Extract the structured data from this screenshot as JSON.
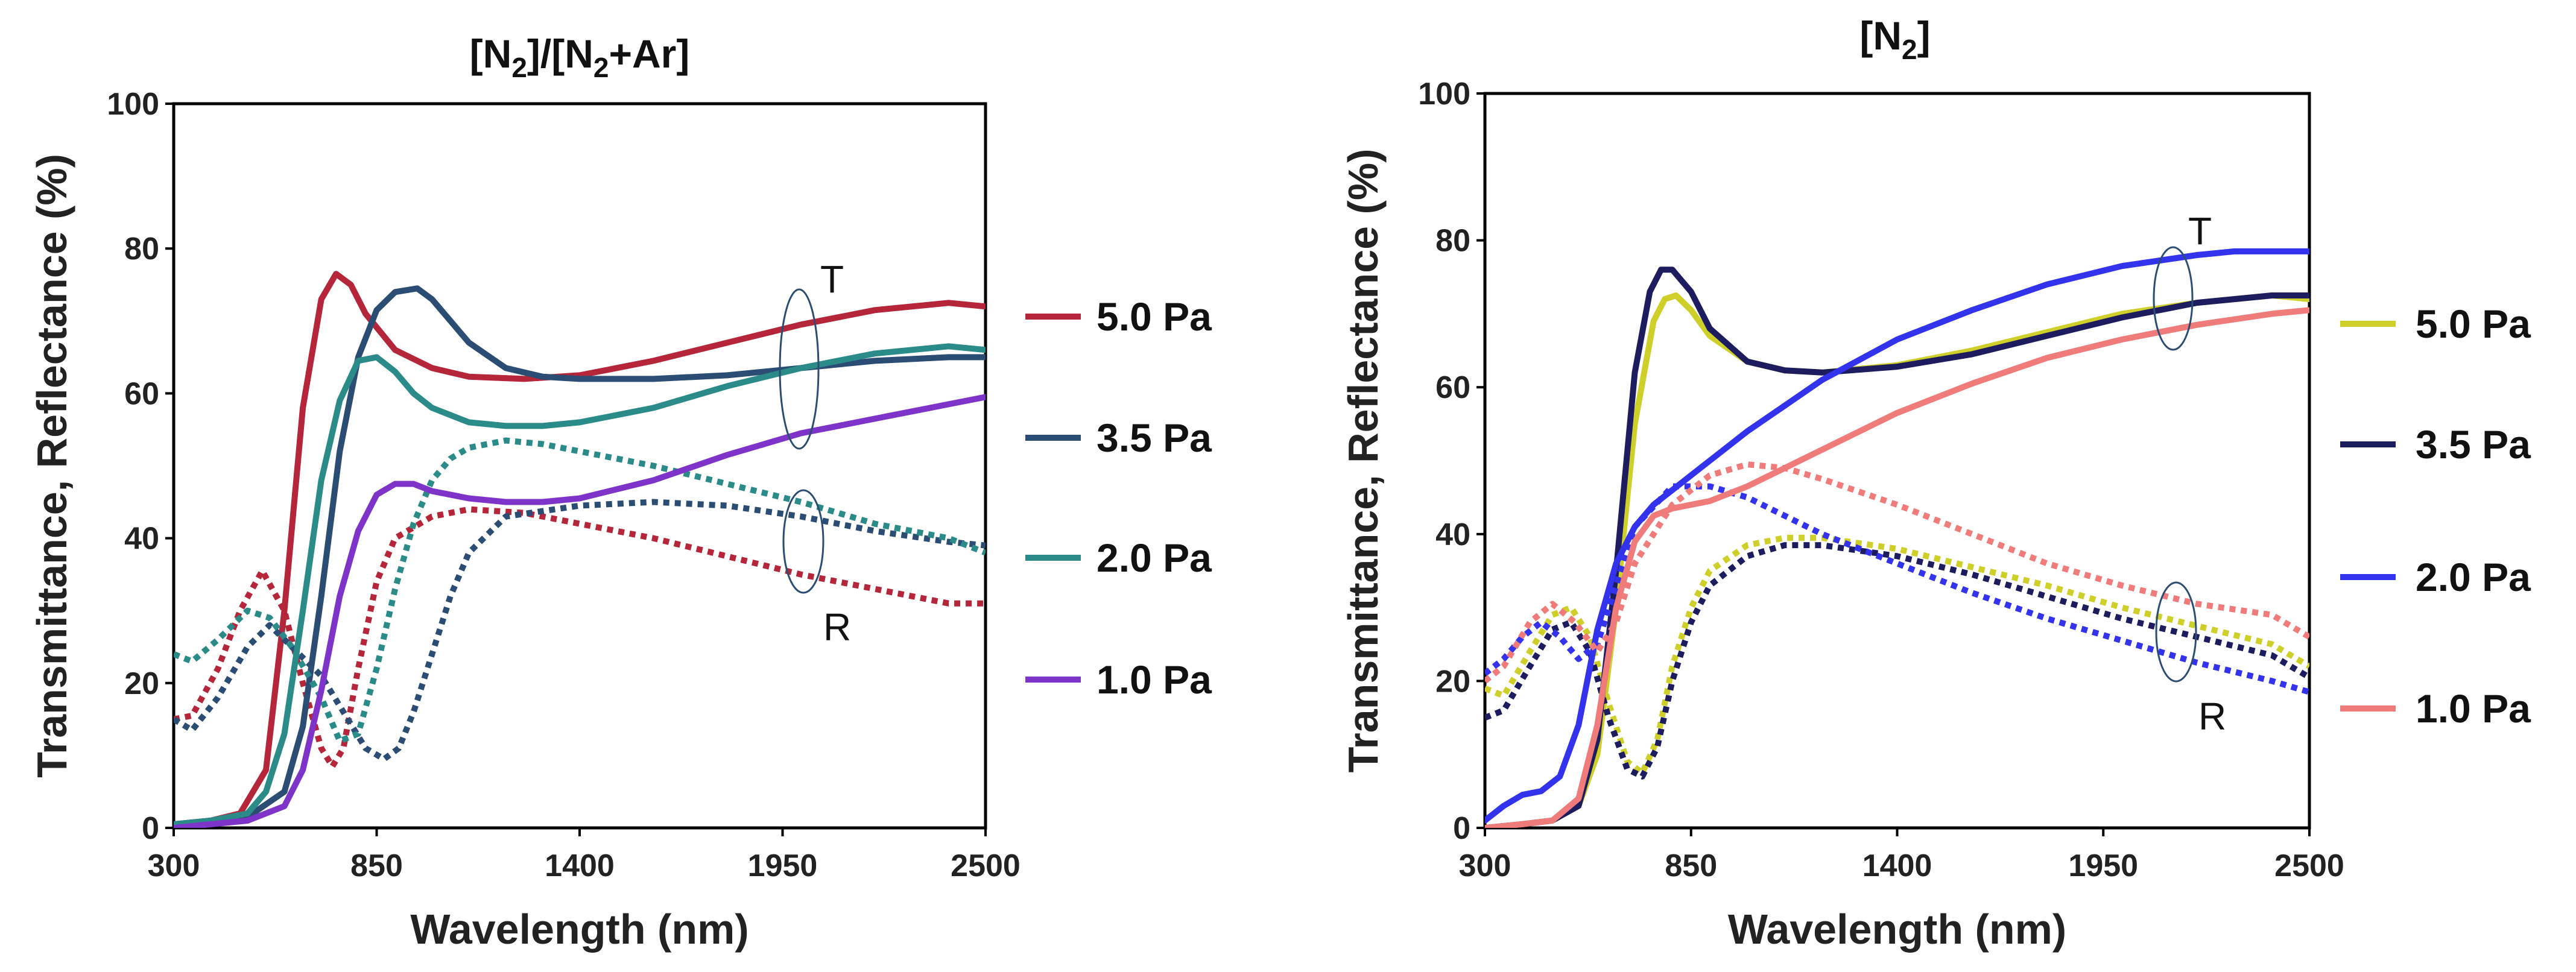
{
  "chart_data": [
    {
      "type": "line",
      "title": "[N2]/[N2+Ar]",
      "title_main": "[N",
      "title_sub1": "2",
      "title_mid": "]/[N",
      "title_sub2": "2",
      "title_end": "+Ar]",
      "xlabel": "Wavelength (nm)",
      "ylabel": "Transmittance,  Reflectance (%)",
      "xlim": [
        300,
        2500
      ],
      "ylim": [
        0,
        100
      ],
      "xticks": [
        300,
        850,
        1400,
        1950,
        2500
      ],
      "yticks": [
        0,
        20,
        40,
        60,
        80,
        100
      ],
      "annotation_T": "T",
      "annotation_R": "R",
      "series": [
        {
          "name": "5.0 Pa",
          "color": "#b5263b",
          "T": {
            "x": [
              300,
              400,
              480,
              550,
              600,
              650,
              700,
              740,
              780,
              820,
              900,
              1000,
              1100,
              1250,
              1400,
              1600,
              1800,
              2000,
              2200,
              2400,
              2500
            ],
            "y": [
              0.5,
              1,
              2,
              8,
              30,
              58,
              73,
              76.5,
              75,
              71,
              66,
              63.5,
              62.3,
              62,
              62.5,
              64.5,
              67,
              69.5,
              71.5,
              72.5,
              72
            ]
          },
          "R": {
            "x": [
              300,
              350,
              420,
              480,
              540,
              600,
              650,
              700,
              730,
              760,
              800,
              850,
              900,
              1000,
              1100,
              1250,
              1400,
              1600,
              1800,
              2000,
              2200,
              2400,
              2500
            ],
            "y": [
              15,
              15.5,
              22,
              30,
              35.5,
              30,
              20,
              11,
              8.5,
              11,
              22,
              34,
              40,
              43,
              44,
              43.5,
              42,
              40,
              37.5,
              35,
              33,
              31,
              31
            ]
          }
        },
        {
          "name": "3.5 Pa",
          "color": "#2c4d73",
          "T": {
            "x": [
              300,
              400,
              500,
              600,
              650,
              700,
              750,
              800,
              850,
              900,
              960,
              1000,
              1050,
              1100,
              1200,
              1300,
              1400,
              1600,
              1800,
              2000,
              2200,
              2400,
              2500
            ],
            "y": [
              0.5,
              1,
              1.5,
              5,
              14,
              32,
              52,
              65,
              71.5,
              74,
              74.5,
              73,
              70,
              67,
              63.5,
              62.3,
              62,
              62,
              62.5,
              63.5,
              64.5,
              65,
              65
            ]
          },
          "R": {
            "x": [
              300,
              350,
              420,
              500,
              560,
              620,
              700,
              760,
              820,
              870,
              910,
              950,
              1000,
              1050,
              1100,
              1200,
              1400,
              1600,
              1800,
              2000,
              2200,
              2400,
              2500
            ],
            "y": [
              15,
              13.5,
              18,
              25,
              28,
              25,
              21,
              16,
              11,
              9.5,
              11,
              16,
              24,
              32,
              38,
              43,
              44.5,
              45,
              44.5,
              43,
              41,
              39.5,
              39
            ]
          }
        },
        {
          "name": "2.0 Pa",
          "color": "#2b8b89",
          "T": {
            "x": [
              300,
              400,
              500,
              550,
              600,
              650,
              700,
              750,
              800,
              850,
              900,
              950,
              1000,
              1100,
              1200,
              1300,
              1400,
              1600,
              1800,
              2000,
              2200,
              2400,
              2500
            ],
            "y": [
              0.5,
              1,
              2,
              5,
              13,
              30,
              48,
              59,
              64.5,
              65,
              63,
              60,
              58,
              56,
              55.5,
              55.5,
              56,
              58,
              61,
              63.5,
              65.5,
              66.5,
              66
            ]
          },
          "R": {
            "x": [
              300,
              350,
              420,
              500,
              560,
              620,
              700,
              750,
              800,
              850,
              900,
              950,
              1000,
              1050,
              1100,
              1200,
              1300,
              1400,
              1600,
              1800,
              2000,
              2200,
              2400,
              2500
            ],
            "y": [
              24,
              23,
              26,
              30,
              29,
              25,
              18,
              12,
              13,
              22,
              33,
              42,
              48,
              51,
              52.5,
              53.5,
              53,
              52,
              50,
              47.5,
              45,
              42,
              40,
              38
            ]
          }
        },
        {
          "name": "1.0 Pa",
          "color": "#7e34c9",
          "T": {
            "x": [
              300,
              400,
              500,
              600,
              650,
              700,
              750,
              800,
              850,
              900,
              950,
              1000,
              1100,
              1200,
              1300,
              1400,
              1600,
              1800,
              2000,
              2200,
              2400,
              2500
            ],
            "y": [
              0,
              0.5,
              1,
              3,
              8,
              19,
              32,
              41,
              46,
              47.5,
              47.5,
              46.5,
              45.5,
              45,
              45,
              45.5,
              48,
              51.5,
              54.5,
              56.5,
              58.5,
              59.5
            ]
          }
        }
      ]
    },
    {
      "type": "line",
      "title": "[N2]",
      "title_main": "[N",
      "title_sub1": "2",
      "title_end": "]",
      "xlabel": "Wavelength (nm)",
      "ylabel": "Transmittance,  Reflectance (%)",
      "xlim": [
        300,
        2500
      ],
      "ylim": [
        0,
        100
      ],
      "xticks": [
        300,
        850,
        1400,
        1950,
        2500
      ],
      "yticks": [
        0,
        20,
        40,
        60,
        80,
        100
      ],
      "annotation_T": "T",
      "annotation_R": "R",
      "series": [
        {
          "name": "5.0 Pa",
          "color": "#cfcf2a",
          "T": {
            "x": [
              300,
              400,
              480,
              550,
              600,
              650,
              700,
              750,
              780,
              810,
              850,
              900,
              1000,
              1100,
              1200,
              1400,
              1600,
              1800,
              2000,
              2200,
              2400,
              2500
            ],
            "y": [
              0,
              0.5,
              1,
              3,
              10,
              30,
              55,
              69,
              72,
              72.5,
              70.5,
              67,
              63.5,
              62.3,
              62,
              63,
              65,
              67.5,
              70,
              71.5,
              72.5,
              72
            ]
          },
          "R": {
            "x": [
              300,
              350,
              420,
              480,
              530,
              580,
              630,
              680,
              720,
              760,
              800,
              850,
              900,
              1000,
              1100,
              1200,
              1400,
              1600,
              1800,
              2000,
              2200,
              2400,
              2500
            ],
            "y": [
              19,
              18,
              24,
              29,
              30,
              26,
              17,
              9,
              7.5,
              12,
              22,
              30,
              35,
              38.5,
              39.5,
              39.5,
              38,
              35.5,
              33,
              30,
              27.5,
              25,
              22
            ]
          }
        },
        {
          "name": "3.5 Pa",
          "color": "#1c1c5e",
          "T": {
            "x": [
              300,
              400,
              480,
              550,
              600,
              650,
              700,
              740,
              770,
              800,
              850,
              900,
              1000,
              1100,
              1200,
              1400,
              1600,
              1800,
              2000,
              2200,
              2400,
              2500
            ],
            "y": [
              0,
              0.5,
              1,
              3,
              12,
              35,
              62,
              73,
              76,
              76,
              73,
              68,
              63.5,
              62.3,
              62,
              62.8,
              64.5,
              67,
              69.5,
              71.5,
              72.5,
              72.5
            ]
          },
          "R": {
            "x": [
              300,
              350,
              420,
              480,
              530,
              580,
              630,
              680,
              720,
              760,
              800,
              850,
              900,
              1000,
              1100,
              1200,
              1400,
              1600,
              1800,
              2000,
              2200,
              2400,
              2500
            ],
            "y": [
              15,
              16,
              22,
              27,
              28,
              24,
              15,
              8,
              7,
              11,
              20,
              28,
              33,
              37,
              38.5,
              38.5,
              37,
              34.5,
              31.5,
              28.5,
              26,
              23.5,
              20.5
            ]
          }
        },
        {
          "name": "2.0 Pa",
          "color": "#3333ee",
          "T": {
            "x": [
              300,
              350,
              400,
              450,
              500,
              550,
              600,
              650,
              700,
              750,
              800,
              900,
              1000,
              1100,
              1200,
              1400,
              1600,
              1800,
              2000,
              2200,
              2300,
              2400,
              2500
            ],
            "y": [
              1,
              3,
              4.5,
              5,
              7,
              14,
              27,
              36,
              41,
              44,
              46,
              50,
              54,
              57.5,
              61,
              66.5,
              70.5,
              74,
              76.5,
              78,
              78.5,
              78.5,
              78.5
            ]
          },
          "R": {
            "x": [
              300,
              350,
              400,
              450,
              500,
              550,
              600,
              650,
              700,
              800,
              900,
              1000,
              1100,
              1200,
              1400,
              1600,
              1800,
              2000,
              2200,
              2400,
              2500
            ],
            "y": [
              21,
              23,
              26,
              28,
              26,
              23,
              25,
              33,
              41,
              46.5,
              46.5,
              45,
              42.5,
              40,
              36,
              32,
              28.5,
              25.5,
              22.5,
              20,
              18.5
            ]
          }
        },
        {
          "name": "1.0 Pa",
          "color": "#f07b7b",
          "T": {
            "x": [
              300,
              400,
              480,
              550,
              600,
              650,
              700,
              750,
              800,
              900,
              1000,
              1100,
              1200,
              1400,
              1600,
              1800,
              2000,
              2200,
              2400,
              2500
            ],
            "y": [
              0,
              0.5,
              1,
              4,
              14,
              30,
              39,
              42.5,
              43.5,
              44.5,
              46.5,
              49,
              51.5,
              56.5,
              60.5,
              64,
              66.5,
              68.5,
              70,
              70.5
            ]
          },
          "R": {
            "x": [
              300,
              350,
              420,
              480,
              540,
              600,
              650,
              700,
              800,
              900,
              1000,
              1100,
              1200,
              1400,
              1600,
              1800,
              2000,
              2200,
              2400,
              2500
            ],
            "y": [
              20,
              22,
              28,
              30.5,
              28,
              24,
              28,
              36,
              44,
              48,
              49.5,
              49,
              47.5,
              44,
              40,
              36,
              33,
              30.5,
              29,
              26
            ]
          }
        }
      ]
    }
  ]
}
